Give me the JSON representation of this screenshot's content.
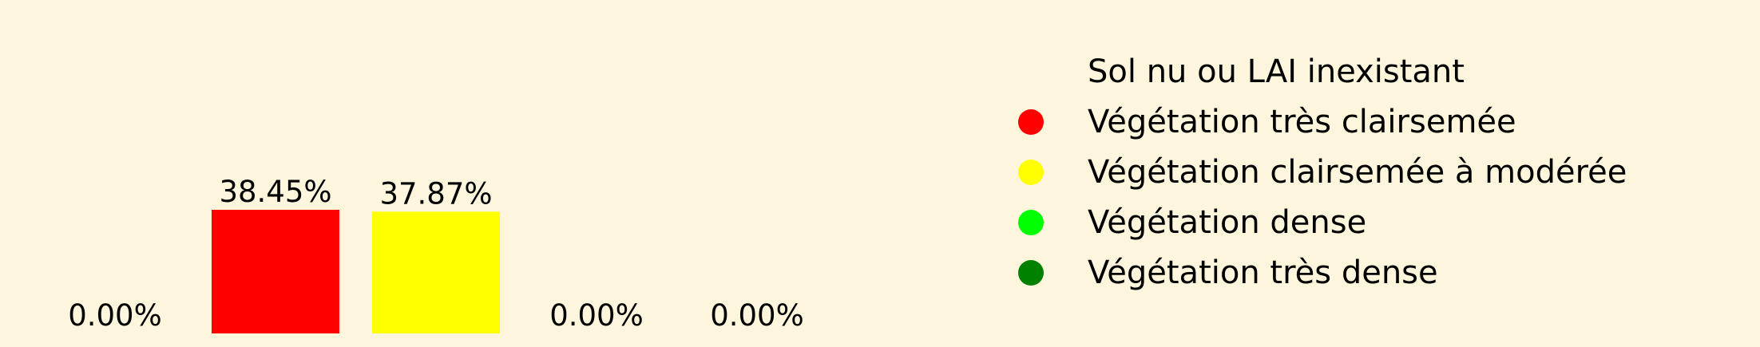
{
  "chart_data": {
    "type": "bar",
    "categories": [
      "Sol nu ou LAI inexistant",
      "Végétation très clairsemée",
      "Végétation clairsemée à modérée",
      "Végétation dense",
      "Végétation très dense"
    ],
    "values": [
      0.0,
      38.45,
      37.87,
      0.0,
      0.0
    ],
    "value_labels": [
      "0.00%",
      "38.45%",
      "37.87%",
      "0.00%",
      "0.00%"
    ],
    "colors": [
      "#fdf6dc",
      "#ff0000",
      "#ffff00",
      "#00ff00",
      "#008000"
    ],
    "ylim": [
      0,
      38.45
    ],
    "grid": false,
    "axes_visible": false,
    "legend": {
      "position": "right",
      "marker": "circle"
    },
    "background": "#fdf6dc"
  }
}
